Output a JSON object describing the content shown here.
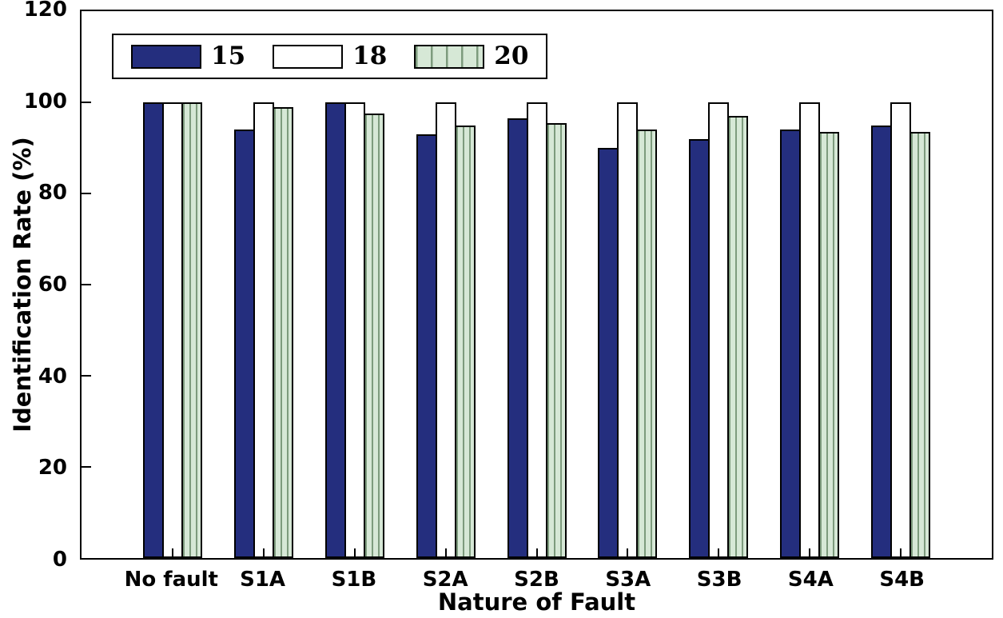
{
  "figure": {
    "background": "#ffffff"
  },
  "chart_data": {
    "type": "bar",
    "title": "",
    "xlabel": "Nature of Fault",
    "ylabel": "Identification Rate (%)",
    "ylim": [
      0,
      120
    ],
    "yticks": [
      0,
      20,
      40,
      60,
      80,
      100,
      120
    ],
    "categories": [
      "No fault",
      "S1A",
      "S1B",
      "S2A",
      "S2B",
      "S3A",
      "S3B",
      "S4A",
      "S4B"
    ],
    "series": [
      {
        "name": "15",
        "color": "#242e7e",
        "hatch": false,
        "values": [
          100,
          94,
          100,
          93,
          96.5,
          90,
          92,
          94,
          95
        ]
      },
      {
        "name": "18",
        "color": "#ffffff",
        "hatch": false,
        "values": [
          100,
          100,
          100,
          100,
          100,
          100,
          100,
          100,
          100
        ]
      },
      {
        "name": "20",
        "color": "#d6e8d6",
        "hatch": true,
        "hatch_color": "#7d9b7d",
        "values": [
          100,
          99,
          97.5,
          95,
          95.5,
          94,
          97,
          93.5,
          93.5
        ]
      }
    ],
    "legend": {
      "position": "top-left",
      "labels": [
        "15",
        "18",
        "20"
      ]
    },
    "grid": false
  }
}
